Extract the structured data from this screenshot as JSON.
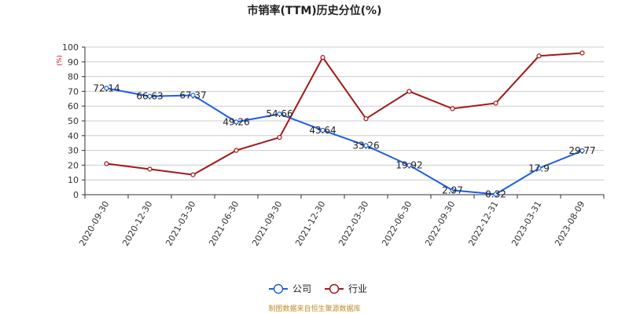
{
  "chart_data": {
    "type": "line",
    "title": "市销率(TTM)历史分位(%)",
    "ylabel": "(%)",
    "ylim": [
      0,
      100
    ],
    "yticks": [
      0,
      10,
      20,
      30,
      40,
      50,
      60,
      70,
      80,
      90,
      100
    ],
    "grid": true,
    "legend_position": "bottom-center",
    "categories": [
      "2020-09-30",
      "2020-12-30",
      "2021-03-30",
      "2021-06-30",
      "2021-09-30",
      "2021-12-30",
      "2022-03-30",
      "2022-06-30",
      "2022-09-30",
      "2022-12-31",
      "2023-03-31",
      "2023-08-09"
    ],
    "series": [
      {
        "name": "公司",
        "color": "#1f5fe0",
        "values": [
          72.14,
          66.63,
          67.37,
          49.26,
          54.66,
          43.64,
          33.26,
          19.92,
          2.97,
          0.32,
          17.9,
          29.77
        ],
        "labels": [
          "72.14",
          "66.63",
          "67.37",
          "49.26",
          "54.66",
          "43.64",
          "33.26",
          "19.92",
          "2.97",
          "0.32",
          "17.9",
          "29.77"
        ]
      },
      {
        "name": "行业",
        "color": "#a01919",
        "values": [
          21.0,
          17.3,
          13.5,
          30.0,
          38.8,
          93.0,
          51.5,
          70.0,
          58.3,
          62.0,
          94.0,
          96.0
        ]
      }
    ],
    "source_note": "制图数据来自恒生聚源数据库"
  }
}
